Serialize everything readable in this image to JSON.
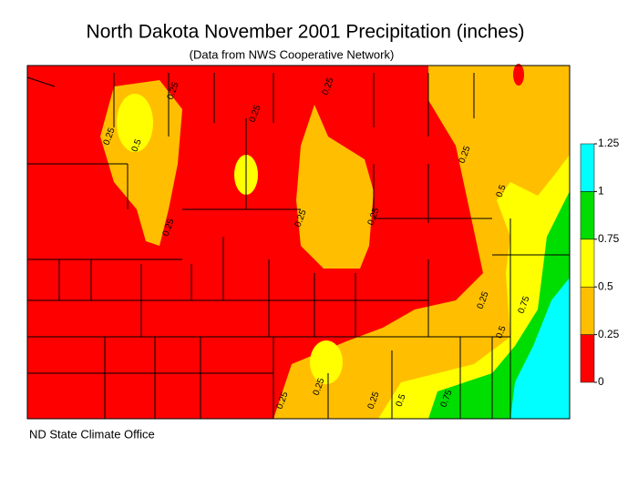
{
  "title": "North Dakota November 2001 Precipitation (inches)",
  "subtitle": "(Data from NWS Cooperative Network)",
  "credit": "ND State Climate Office",
  "legend": {
    "ticks": [
      0,
      0.25,
      0.5,
      0.75,
      1,
      1.25
    ],
    "colors": [
      "#ff0000",
      "#ffbf00",
      "#ffff00",
      "#00dd00",
      "#00ffff"
    ]
  },
  "contour_labels": [
    0.25,
    0.25,
    0.25,
    0.25,
    0.5,
    0.25,
    0.25,
    0.25,
    0.25,
    0.5,
    0.25,
    0.75,
    0.5,
    0.25,
    0.25,
    0.25,
    0.5,
    0.75
  ]
}
